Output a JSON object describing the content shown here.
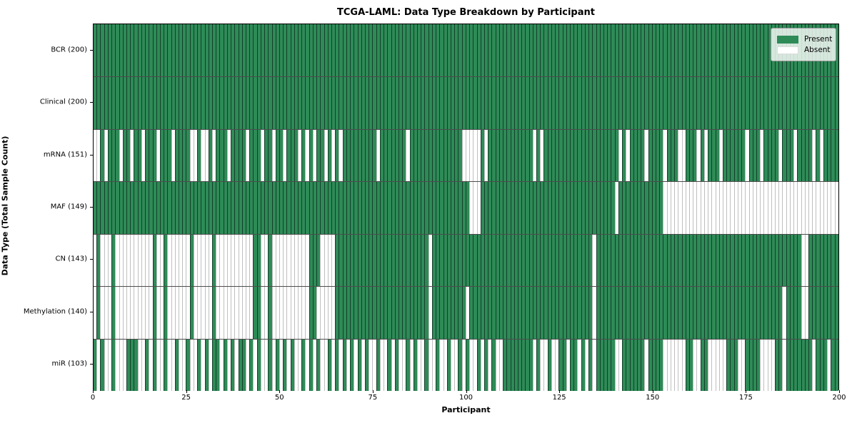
{
  "title": "TCGA-LAML: Data Type Breakdown by Participant",
  "xlabel": "Participant",
  "ylabel": "Data Type (Total Sample Count)",
  "legend": {
    "present_label": "Present",
    "absent_label": "Absent"
  },
  "colors": {
    "present": "#2e8b57",
    "absent": "#ffffff"
  },
  "x_ticks": [
    0,
    25,
    50,
    75,
    100,
    125,
    150,
    175,
    200
  ],
  "chart_data": {
    "type": "heatmap",
    "title": "TCGA-LAML: Data Type Breakdown by Participant",
    "xlabel": "Participant",
    "ylabel": "Data Type (Total Sample Count)",
    "x_range": [
      0,
      200
    ],
    "n_participants": 200,
    "legend_entries": [
      "Present",
      "Absent"
    ],
    "legend_position": "upper right",
    "rows": [
      {
        "label": "BCR (200)",
        "present_count": 200,
        "absent_participants": []
      },
      {
        "label": "Clinical (200)",
        "present_count": 200,
        "absent_participants": []
      },
      {
        "label": "mRNA (151)",
        "present_count": 151,
        "absent_participants": [
          0,
          1,
          3,
          7,
          10,
          13,
          17,
          21,
          26,
          27,
          29,
          30,
          32,
          36,
          41,
          45,
          48,
          51,
          55,
          57,
          59,
          62,
          64,
          66,
          76,
          84,
          99,
          100,
          101,
          102,
          103,
          105,
          118,
          120,
          141,
          143,
          148,
          153,
          157,
          158,
          162,
          164,
          168,
          175,
          179,
          184,
          188,
          193,
          195
        ]
      },
      {
        "label": "MAF (149)",
        "present_count": 149,
        "absent_participants": [
          101,
          102,
          103,
          140,
          153,
          154,
          155,
          156,
          157,
          158,
          159,
          160,
          161,
          162,
          163,
          164,
          165,
          166,
          167,
          168,
          169,
          170,
          171,
          172,
          173,
          174,
          175,
          176,
          177,
          178,
          179,
          180,
          181,
          182,
          183,
          184,
          185,
          186,
          187,
          188,
          189,
          190,
          191,
          192,
          193,
          194,
          195,
          196,
          197,
          198,
          199
        ]
      },
      {
        "label": "CN (143)",
        "present_count": 143,
        "absent_participants": [
          0,
          2,
          3,
          4,
          6,
          7,
          8,
          9,
          10,
          11,
          12,
          13,
          14,
          15,
          17,
          18,
          20,
          21,
          22,
          23,
          24,
          25,
          27,
          28,
          29,
          30,
          31,
          33,
          34,
          35,
          36,
          37,
          38,
          39,
          40,
          41,
          42,
          45,
          46,
          48,
          49,
          50,
          51,
          52,
          53,
          54,
          55,
          56,
          57,
          61,
          62,
          63,
          64,
          90,
          134,
          190,
          191
        ]
      },
      {
        "label": "Methylation (140)",
        "present_count": 140,
        "absent_participants": [
          0,
          2,
          3,
          4,
          6,
          7,
          8,
          9,
          10,
          11,
          12,
          13,
          14,
          15,
          17,
          18,
          20,
          21,
          22,
          23,
          24,
          25,
          27,
          28,
          29,
          30,
          31,
          33,
          34,
          35,
          36,
          37,
          38,
          39,
          40,
          41,
          42,
          45,
          46,
          48,
          49,
          50,
          51,
          52,
          53,
          54,
          55,
          56,
          57,
          60,
          61,
          62,
          63,
          64,
          90,
          100,
          134,
          185,
          190,
          191
        ]
      },
      {
        "label": "miR (103)",
        "present_count": 103,
        "absent_participants": [
          1,
          3,
          4,
          6,
          7,
          8,
          12,
          13,
          15,
          17,
          18,
          20,
          21,
          23,
          24,
          26,
          27,
          29,
          31,
          34,
          36,
          38,
          41,
          43,
          45,
          46,
          48,
          50,
          52,
          54,
          55,
          57,
          59,
          61,
          62,
          64,
          66,
          68,
          70,
          72,
          74,
          75,
          77,
          78,
          80,
          82,
          83,
          85,
          87,
          88,
          90,
          91,
          93,
          94,
          96,
          97,
          99,
          101,
          102,
          104,
          106,
          108,
          109,
          118,
          120,
          121,
          123,
          124,
          127,
          130,
          132,
          134,
          140,
          141,
          148,
          153,
          154,
          155,
          156,
          157,
          158,
          161,
          162,
          165,
          166,
          167,
          168,
          169,
          173,
          174,
          179,
          180,
          181,
          182,
          185,
          193,
          197
        ]
      }
    ]
  }
}
